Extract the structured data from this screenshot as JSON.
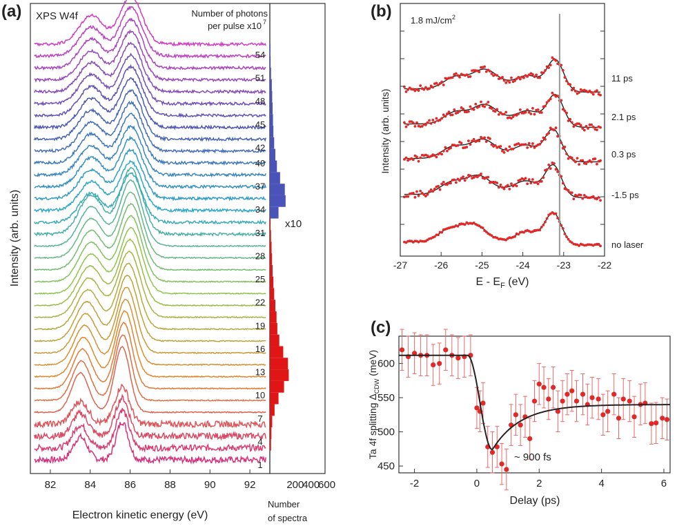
{
  "chart_data": [
    {
      "panel": "(a)",
      "type": "line",
      "label": "XPS W4f",
      "xlabel": "Electron kinetic energy (eV)",
      "ylabel": "Intensity (arb. units)",
      "xlim": [
        81,
        93
      ],
      "x_ticks": [
        82,
        84,
        86,
        88,
        90,
        92
      ],
      "right_axis_title": [
        "Number of photons",
        "per pulse x10",
        "7"
      ],
      "photon_levels": [
        1,
        4,
        7,
        10,
        13,
        16,
        19,
        22,
        25,
        28,
        31,
        34,
        37,
        40,
        42,
        45,
        48,
        51,
        54
      ],
      "spectra_count": 36,
      "line_colors": {
        "low": "#d6307a",
        "mid_low": "#e3862a",
        "mid": "#8fc44a",
        "mid_high": "#2aa7c9",
        "high": "#4b55b5",
        "top": "#d03ac4"
      }
    },
    {
      "panel": "(a) histogram",
      "type": "bar",
      "orientation": "horizontal",
      "xlabel": [
        "Number",
        "of spectra"
      ],
      "x_ticks": [
        200,
        400,
        600
      ],
      "xlim": [
        0,
        700
      ],
      "annotation": "x10",
      "scale_note": "upper bins (34 and above) shown multiplied by 10",
      "bins": [
        {
          "photons": 4,
          "count": 15
        },
        {
          "photons": 5.5,
          "count": 20
        },
        {
          "photons": 7,
          "count": 30
        },
        {
          "photons": 8.5,
          "count": 60
        },
        {
          "photons": 10,
          "count": 110
        },
        {
          "photons": 11.5,
          "count": 180
        },
        {
          "photons": 13,
          "count": 240
        },
        {
          "photons": 14.5,
          "count": 230
        },
        {
          "photons": 16,
          "count": 170
        },
        {
          "photons": 17.5,
          "count": 120
        },
        {
          "photons": 19,
          "count": 95
        },
        {
          "photons": 20.5,
          "count": 85
        },
        {
          "photons": 22,
          "count": 70
        },
        {
          "photons": 23.5,
          "count": 55
        },
        {
          "photons": 25,
          "count": 45
        },
        {
          "photons": 26.5,
          "count": 35
        },
        {
          "photons": 28,
          "count": 28
        },
        {
          "photons": 29.5,
          "count": 22
        },
        {
          "photons": 31,
          "count": 15
        },
        {
          "photons": 32.5,
          "count": 10
        },
        {
          "photons": 34,
          "count": 110
        },
        {
          "photons": 35.5,
          "count": 200
        },
        {
          "photons": 37,
          "count": 190
        },
        {
          "photons": 38.5,
          "count": 130
        },
        {
          "photons": 40,
          "count": 90
        },
        {
          "photons": 41.5,
          "count": 70
        },
        {
          "photons": 43,
          "count": 55
        },
        {
          "photons": 44.5,
          "count": 45
        },
        {
          "photons": 46,
          "count": 40
        },
        {
          "photons": 47.5,
          "count": 35
        },
        {
          "photons": 49,
          "count": 30
        },
        {
          "photons": 50.5,
          "count": 25
        },
        {
          "photons": 52,
          "count": 15
        },
        {
          "photons": 53.5,
          "count": 10
        },
        {
          "photons": 55,
          "count": 8
        }
      ]
    },
    {
      "panel": "(b)",
      "type": "line",
      "label": "1.8 mJ/cm²",
      "label_main": "1.8 mJ/cm",
      "label_sup": "2",
      "xlabel": "E - E",
      "xlabel_sub": "F",
      "xlabel_unit": " (eV)",
      "ylabel": "Intensity (arb. units)",
      "xlim": [
        -27,
        -22
      ],
      "x_ticks": [
        -27,
        -26,
        -25,
        -24,
        -23,
        -22
      ],
      "vertical_line_x": -23.1,
      "series": [
        {
          "name": "no laser",
          "peaks": [
            -25.8,
            -25.2,
            -23.9,
            -23.25
          ]
        },
        {
          "name": "-1.5 ps",
          "peaks": [
            -25.75,
            -25.1,
            -23.9,
            -23.25
          ]
        },
        {
          "name": "0.3 ps",
          "peaks": [
            -25.7,
            -25.0,
            -23.9,
            -23.25
          ]
        },
        {
          "name": "2.1 ps",
          "peaks": [
            -25.65,
            -24.95,
            -23.85,
            -23.2
          ]
        },
        {
          "name": "11 ps",
          "peaks": [
            -25.65,
            -24.95,
            -23.85,
            -23.2
          ]
        }
      ]
    },
    {
      "panel": "(c)",
      "type": "scatter",
      "xlabel": "Delay (ps)",
      "ylabel": "Ta 4f splitting Δ",
      "ylabel_sub": "CDW",
      "ylabel_unit": " (meV)",
      "xlim": [
        -2.5,
        6.2
      ],
      "ylim": [
        440,
        640
      ],
      "x_ticks": [
        -2,
        0,
        2,
        4,
        6
      ],
      "y_ticks": [
        450,
        500,
        550,
        600
      ],
      "annotation": "~ 900 fs",
      "points": [
        {
          "x": -2.4,
          "y": 620
        },
        {
          "x": -2.2,
          "y": 610
        },
        {
          "x": -2.0,
          "y": 615
        },
        {
          "x": -1.8,
          "y": 612
        },
        {
          "x": -1.6,
          "y": 612
        },
        {
          "x": -1.4,
          "y": 598
        },
        {
          "x": -1.2,
          "y": 600
        },
        {
          "x": -1.0,
          "y": 620
        },
        {
          "x": -0.8,
          "y": 612
        },
        {
          "x": -0.6,
          "y": 608
        },
        {
          "x": -0.4,
          "y": 610
        },
        {
          "x": -0.2,
          "y": 612
        },
        {
          "x": 0.0,
          "y": 535
        },
        {
          "x": 0.1,
          "y": 530
        },
        {
          "x": 0.2,
          "y": 542
        },
        {
          "x": 0.35,
          "y": 478
        },
        {
          "x": 0.5,
          "y": 470
        },
        {
          "x": 0.65,
          "y": 478
        },
        {
          "x": 0.8,
          "y": 453
        },
        {
          "x": 0.95,
          "y": 445
        },
        {
          "x": 1.1,
          "y": 510
        },
        {
          "x": 1.25,
          "y": 525
        },
        {
          "x": 1.4,
          "y": 510
        },
        {
          "x": 1.55,
          "y": 522
        },
        {
          "x": 1.7,
          "y": 490
        },
        {
          "x": 1.85,
          "y": 545
        },
        {
          "x": 2.0,
          "y": 570
        },
        {
          "x": 2.15,
          "y": 565
        },
        {
          "x": 2.3,
          "y": 548
        },
        {
          "x": 2.45,
          "y": 565
        },
        {
          "x": 2.6,
          "y": 530
        },
        {
          "x": 2.75,
          "y": 545
        },
        {
          "x": 2.9,
          "y": 555
        },
        {
          "x": 3.05,
          "y": 560
        },
        {
          "x": 3.2,
          "y": 545
        },
        {
          "x": 3.4,
          "y": 555
        },
        {
          "x": 3.55,
          "y": 540
        },
        {
          "x": 3.7,
          "y": 550
        },
        {
          "x": 3.9,
          "y": 548
        },
        {
          "x": 4.05,
          "y": 525
        },
        {
          "x": 4.2,
          "y": 530
        },
        {
          "x": 4.4,
          "y": 555
        },
        {
          "x": 4.55,
          "y": 520
        },
        {
          "x": 4.7,
          "y": 548
        },
        {
          "x": 4.9,
          "y": 545
        },
        {
          "x": 5.05,
          "y": 522
        },
        {
          "x": 5.25,
          "y": 540
        },
        {
          "x": 5.4,
          "y": 542
        },
        {
          "x": 5.6,
          "y": 512
        },
        {
          "x": 5.75,
          "y": 513
        },
        {
          "x": 5.95,
          "y": 520
        },
        {
          "x": 6.1,
          "y": 518
        }
      ],
      "error_bar_meV": 30,
      "fit": {
        "baseline": 612,
        "dip_center_x": 0.5,
        "dip_min": 474,
        "recovery_level": 540,
        "recovery_tau_ps": 0.9
      }
    }
  ],
  "colors": {
    "data_red": "#e02a2a",
    "fit_black": "#222222",
    "hist_red": "#e01515",
    "hist_blue": "#4a53b8"
  }
}
